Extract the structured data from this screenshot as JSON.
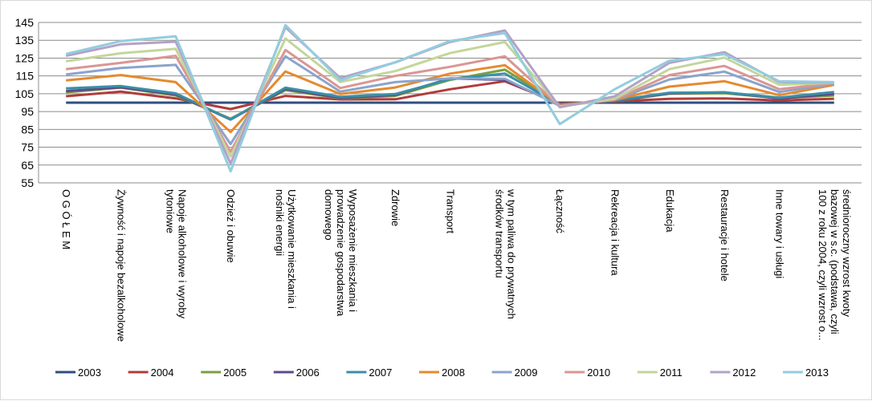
{
  "chart_data": {
    "type": "line",
    "title": "",
    "xlabel": "",
    "ylabel": "",
    "ylim": [
      55,
      145
    ],
    "yticks": [
      55,
      65,
      75,
      85,
      95,
      105,
      115,
      125,
      135,
      145
    ],
    "grid": true,
    "legend_position": "bottom",
    "categories": [
      [
        "O G Ó Ł E M"
      ],
      [
        "Żywność i napoje bezalkoholowe"
      ],
      [
        "Napoje alkoholowe i wyroby",
        "tytoniowe"
      ],
      [
        "Odzież i obuwie"
      ],
      [
        "Użytkowanie mieszkania i",
        "nośniki energii"
      ],
      [
        "Wyposażenie mieszkania i",
        "prowadzenie gospodarstwa",
        "domowego"
      ],
      [
        "Zdrowie"
      ],
      [
        "Transport"
      ],
      [
        "w tym paliwa do prywatnych",
        "środków transportu"
      ],
      [
        "Łączność"
      ],
      [
        "Rekreacja i kultura"
      ],
      [
        "Edukacja"
      ],
      [
        "Restauracje i hotele"
      ],
      [
        "Inne towary i usługi"
      ],
      [
        "średnioroczny wzrost kwoty",
        "bazowej w s.c. (podstawa, czyli",
        "100 z roku 2004, czyli wzrost o..."
      ]
    ],
    "series": [
      {
        "name": "2003",
        "color": "#2f4f7f",
        "values": [
          100,
          100,
          100,
          100,
          100,
          100,
          100,
          100,
          100,
          100,
          100,
          100,
          100,
          100,
          100
        ]
      },
      {
        "name": "2004",
        "color": "#b03c3a",
        "values": [
          103.6,
          106.2,
          102.4,
          96.4,
          103.8,
          101.8,
          101.9,
          107.5,
          112,
          99.5,
          100.7,
          102.1,
          102.4,
          101.2,
          102.2
        ]
      },
      {
        "name": "2005",
        "color": "#7aa03f",
        "values": [
          105.8,
          108.4,
          104,
          91,
          107,
          102.4,
          103.8,
          112.8,
          118.5,
          99,
          100.9,
          105,
          105.3,
          102.5,
          104
        ]
      },
      {
        "name": "2006",
        "color": "#5e4a8a",
        "values": [
          106.5,
          108.6,
          104.6,
          90.5,
          107.7,
          102.6,
          104.3,
          113.6,
          112.8,
          98.9,
          101,
          105.2,
          105.8,
          102.4,
          104.8
        ]
      },
      {
        "name": "2007",
        "color": "#3a8fa8",
        "values": [
          108,
          109.3,
          105.2,
          90.6,
          108.4,
          103.3,
          104.8,
          113.2,
          116.3,
          98.9,
          101.2,
          105.6,
          105.8,
          102.8,
          106
        ]
      },
      {
        "name": "2008",
        "color": "#e58a2e",
        "values": [
          112.5,
          115.5,
          111.5,
          83.5,
          117.5,
          104.8,
          108.5,
          116.3,
          121,
          98.6,
          101.5,
          109,
          112,
          104.2,
          110
        ]
      },
      {
        "name": "2009",
        "color": "#8aa4cc",
        "values": [
          115.8,
          119.5,
          121.2,
          76.8,
          126,
          106.2,
          111.5,
          113.6,
          113.4,
          98.2,
          101.6,
          113,
          117.4,
          106,
          110.6
        ]
      },
      {
        "name": "2010",
        "color": "#d99694",
        "values": [
          118.8,
          122.3,
          126.3,
          72.5,
          129.5,
          108.2,
          115,
          120.1,
          126,
          98,
          101.7,
          115.5,
          120.6,
          107.5,
          111
        ]
      },
      {
        "name": "2011",
        "color": "#c3d69b",
        "values": [
          123.2,
          127.7,
          130.2,
          69.7,
          136,
          111.6,
          117.7,
          127.8,
          134,
          97.7,
          102.2,
          118.8,
          125.3,
          110,
          111.2
        ]
      },
      {
        "name": "2012",
        "color": "#b3a2c7",
        "values": [
          126.3,
          132.7,
          134.2,
          65.8,
          142.3,
          113.8,
          122.6,
          134,
          140.5,
          97.4,
          103.5,
          122.3,
          128.3,
          111.5,
          111.3
        ]
      },
      {
        "name": "2013",
        "color": "#93cddd",
        "values": [
          127.3,
          134.5,
          137.2,
          61.5,
          143.5,
          112.5,
          122.7,
          134.6,
          139,
          88,
          107.5,
          123.6,
          127.2,
          112,
          111.5
        ]
      }
    ]
  }
}
